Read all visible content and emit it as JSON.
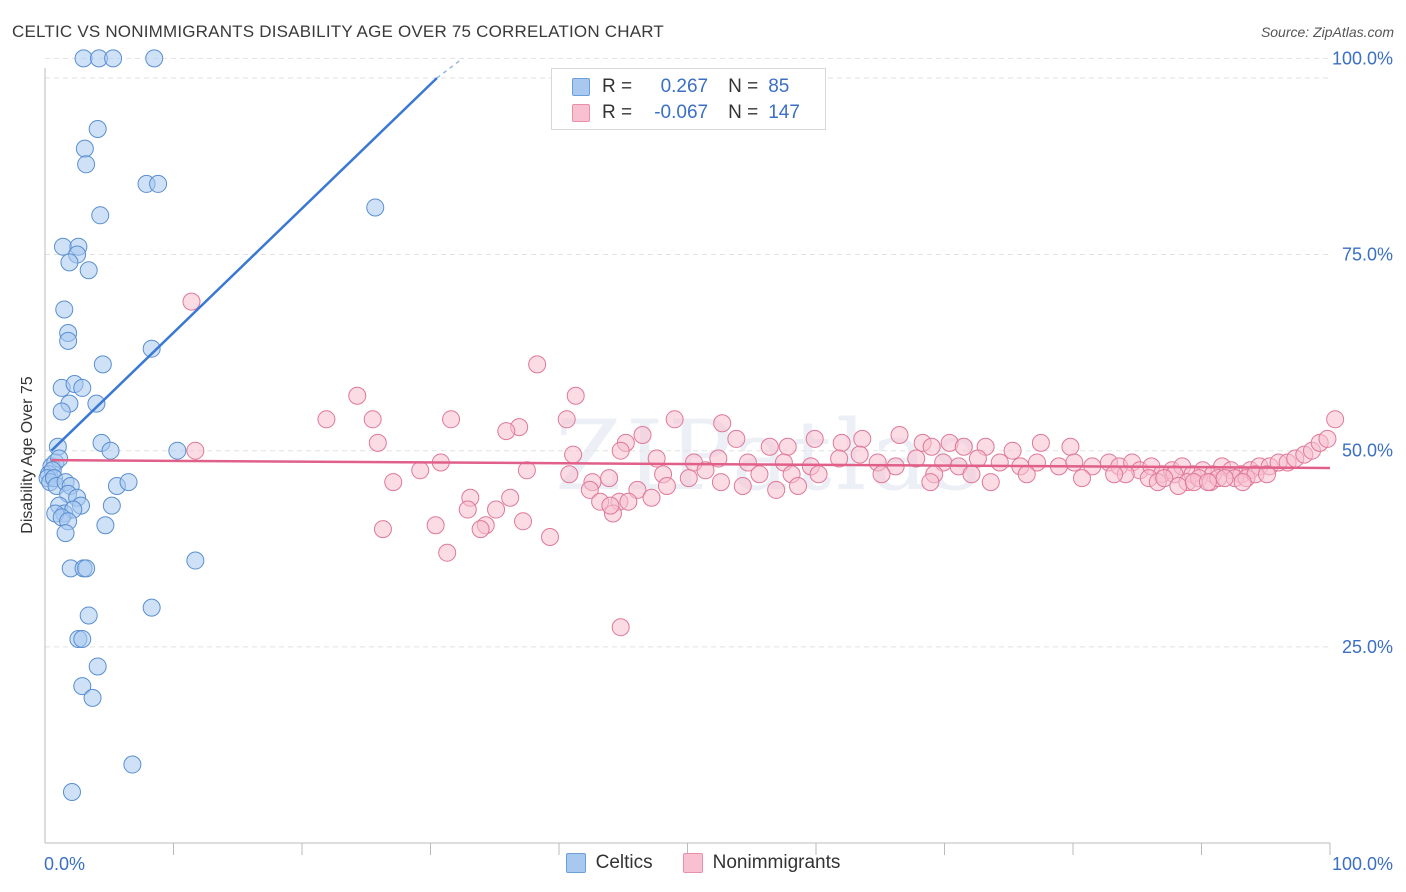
{
  "title": "CELTIC VS NONIMMIGRANTS DISABILITY AGE OVER 75 CORRELATION CHART",
  "source": "Source: ZipAtlas.com",
  "watermark": "ZIPatlas",
  "legend": {
    "r_label": "R =",
    "n_label": "N =",
    "rows": [
      {
        "name": "Celtics",
        "r": "0.267",
        "n": "85",
        "color": "#a8c8f0",
        "stroke": "#6a9fd8"
      },
      {
        "name": "Nonimmigrants",
        "r": "-0.067",
        "n": "147",
        "color": "#f8c0d0",
        "stroke": "#e890aa"
      }
    ]
  },
  "chart_data": {
    "type": "scatter",
    "title": "CELTIC VS NONIMMIGRANTS DISABILITY AGE OVER 75 CORRELATION CHART",
    "xlabel": "",
    "ylabel": "Disability Age Over 75",
    "xlim": [
      0,
      100
    ],
    "ylim": [
      0,
      100
    ],
    "x_tick_labels": [
      "0.0%",
      "100.0%"
    ],
    "y_tick_labels": [
      "25.0%",
      "50.0%",
      "75.0%",
      "100.0%"
    ],
    "y_ticks": [
      25,
      50,
      75,
      100
    ],
    "series": [
      {
        "name": "Celtics",
        "color": "#a8c8f0",
        "stroke": "#5a8fd0",
        "trend": {
          "x": [
            0.5,
            30.5
          ],
          "y": [
            50,
            97.5
          ],
          "color": "#3a78d4",
          "dash_to": [
            32.5,
            100
          ]
        },
        "points": [
          [
            3,
            100
          ],
          [
            4.2,
            100
          ],
          [
            5.3,
            100
          ],
          [
            8.5,
            100
          ],
          [
            4.1,
            91
          ],
          [
            3.1,
            88.5
          ],
          [
            3.2,
            86.5
          ],
          [
            7.9,
            84
          ],
          [
            8.8,
            84
          ],
          [
            4.3,
            80
          ],
          [
            25.7,
            81
          ],
          [
            1.4,
            76
          ],
          [
            2.6,
            76
          ],
          [
            2.5,
            75
          ],
          [
            1.9,
            74
          ],
          [
            3.4,
            73
          ],
          [
            1.5,
            68
          ],
          [
            1.8,
            65
          ],
          [
            1.8,
            64
          ],
          [
            8.3,
            63
          ],
          [
            4.5,
            61
          ],
          [
            1.3,
            58
          ],
          [
            2.3,
            58.5
          ],
          [
            2.9,
            58
          ],
          [
            1.9,
            56
          ],
          [
            4,
            56
          ],
          [
            1.3,
            55
          ],
          [
            1,
            50.5
          ],
          [
            4.4,
            51
          ],
          [
            5.1,
            50
          ],
          [
            10.3,
            50
          ],
          [
            0.5,
            48
          ],
          [
            0.8,
            48.5
          ],
          [
            1.1,
            49
          ],
          [
            0.3,
            47
          ],
          [
            0.6,
            47.5
          ],
          [
            0.2,
            46.5
          ],
          [
            0.4,
            46
          ],
          [
            0.7,
            46.5
          ],
          [
            0.9,
            45.5
          ],
          [
            1.6,
            46
          ],
          [
            2,
            45.5
          ],
          [
            1.8,
            44.5
          ],
          [
            2.5,
            44
          ],
          [
            5.6,
            45.5
          ],
          [
            6.5,
            46
          ],
          [
            1.1,
            43
          ],
          [
            2.8,
            43
          ],
          [
            5.2,
            43
          ],
          [
            1.5,
            42
          ],
          [
            2.2,
            42.5
          ],
          [
            0.8,
            42
          ],
          [
            1.3,
            41.5
          ],
          [
            1.8,
            41
          ],
          [
            4.7,
            40.5
          ],
          [
            1.6,
            39.5
          ],
          [
            11.7,
            36
          ],
          [
            2,
            35
          ],
          [
            3,
            35
          ],
          [
            3.2,
            35
          ],
          [
            3.4,
            29
          ],
          [
            8.3,
            30
          ],
          [
            2.6,
            26
          ],
          [
            2.9,
            26
          ],
          [
            4.1,
            22.5
          ],
          [
            2.9,
            20
          ],
          [
            3.7,
            18.5
          ],
          [
            6.8,
            10
          ],
          [
            2.1,
            6.5
          ]
        ]
      },
      {
        "name": "Nonimmigrants",
        "color": "#f8c0d0",
        "stroke": "#e07898",
        "trend": {
          "x": [
            0.5,
            100
          ],
          "y": [
            48.8,
            47.8
          ],
          "color": "#e0608a"
        },
        "points": [
          [
            11.4,
            69
          ],
          [
            38.3,
            61
          ],
          [
            24.3,
            57
          ],
          [
            41.3,
            57
          ],
          [
            21.9,
            54
          ],
          [
            25.5,
            54
          ],
          [
            31.6,
            54
          ],
          [
            36.9,
            53
          ],
          [
            40.6,
            54
          ],
          [
            49,
            54
          ],
          [
            52.7,
            53.5
          ],
          [
            35.9,
            52.5
          ],
          [
            25.9,
            51
          ],
          [
            30.8,
            48.5
          ],
          [
            45.2,
            51
          ],
          [
            46.5,
            52
          ],
          [
            53.8,
            51.5
          ],
          [
            56.4,
            50.5
          ],
          [
            57.8,
            50.5
          ],
          [
            59.9,
            51.5
          ],
          [
            62,
            51
          ],
          [
            63.6,
            51.5
          ],
          [
            66.5,
            52
          ],
          [
            68.3,
            51
          ],
          [
            70.4,
            51
          ],
          [
            71.5,
            50.5
          ],
          [
            73.2,
            50.5
          ],
          [
            75.3,
            50
          ],
          [
            77.5,
            51
          ],
          [
            79.8,
            50.5
          ],
          [
            11.7,
            50
          ],
          [
            41.1,
            49.5
          ],
          [
            44.8,
            50
          ],
          [
            47.6,
            49
          ],
          [
            50.5,
            48.5
          ],
          [
            52.4,
            49
          ],
          [
            54.7,
            48.5
          ],
          [
            57.5,
            48.5
          ],
          [
            59.6,
            48
          ],
          [
            61.8,
            49
          ],
          [
            63.4,
            49.5
          ],
          [
            64.8,
            48.5
          ],
          [
            66.2,
            48
          ],
          [
            67.8,
            49
          ],
          [
            69.9,
            48.5
          ],
          [
            71.1,
            48
          ],
          [
            72.6,
            49
          ],
          [
            74.3,
            48.5
          ],
          [
            75.9,
            48
          ],
          [
            77.2,
            48.5
          ],
          [
            78.9,
            48
          ],
          [
            80.1,
            48.5
          ],
          [
            81.5,
            48
          ],
          [
            82.8,
            48.5
          ],
          [
            83.6,
            48
          ],
          [
            84.6,
            48.5
          ],
          [
            85.2,
            47.5
          ],
          [
            86.1,
            48
          ],
          [
            86.9,
            47
          ],
          [
            87.7,
            47.5
          ],
          [
            88.5,
            48
          ],
          [
            89.3,
            47
          ],
          [
            90.1,
            47.5
          ],
          [
            90.9,
            47
          ],
          [
            91.6,
            48
          ],
          [
            92.3,
            47.5
          ],
          [
            93.1,
            47
          ],
          [
            93.8,
            47.5
          ],
          [
            94.5,
            48
          ],
          [
            95.3,
            48
          ],
          [
            96,
            48.5
          ],
          [
            96.7,
            48.5
          ],
          [
            97.3,
            49
          ],
          [
            98,
            49.5
          ],
          [
            98.6,
            50
          ],
          [
            99.2,
            51
          ],
          [
            99.8,
            51.5
          ],
          [
            100.4,
            54
          ],
          [
            27.1,
            46
          ],
          [
            29.2,
            47.5
          ],
          [
            37.5,
            47.5
          ],
          [
            40.8,
            47
          ],
          [
            42.6,
            46
          ],
          [
            43.9,
            46.5
          ],
          [
            48.1,
            47
          ],
          [
            50.1,
            46.5
          ],
          [
            51.4,
            47.5
          ],
          [
            55.6,
            47
          ],
          [
            58.1,
            47
          ],
          [
            60.2,
            47
          ],
          [
            65.1,
            47
          ],
          [
            69.2,
            47
          ],
          [
            72.1,
            47
          ],
          [
            76.4,
            47
          ],
          [
            84.1,
            47
          ],
          [
            85.9,
            46.5
          ],
          [
            86.6,
            46
          ],
          [
            87.9,
            47
          ],
          [
            88.9,
            46
          ],
          [
            89.8,
            46.5
          ],
          [
            90.7,
            46
          ],
          [
            91.3,
            46.5
          ],
          [
            92.6,
            46.5
          ],
          [
            93.5,
            46.5
          ],
          [
            94.2,
            47
          ],
          [
            95.1,
            47
          ],
          [
            42.4,
            45
          ],
          [
            46.1,
            45
          ],
          [
            48.4,
            45.5
          ],
          [
            52.6,
            46
          ],
          [
            54.3,
            45.5
          ],
          [
            56.9,
            45
          ],
          [
            58.6,
            45.5
          ],
          [
            68.9,
            46
          ],
          [
            73.6,
            46
          ],
          [
            80.7,
            46.5
          ],
          [
            83.2,
            47
          ],
          [
            87.1,
            46.5
          ],
          [
            88.2,
            45.5
          ],
          [
            89.4,
            46
          ],
          [
            90.5,
            46
          ],
          [
            91.8,
            46.5
          ],
          [
            93.2,
            46
          ],
          [
            33.1,
            44
          ],
          [
            36.2,
            44
          ],
          [
            44.7,
            43.5
          ],
          [
            47.2,
            44
          ],
          [
            32.9,
            42.5
          ],
          [
            35.1,
            42.5
          ],
          [
            34.3,
            40.5
          ],
          [
            37.2,
            41
          ],
          [
            26.3,
            40
          ],
          [
            30.4,
            40.5
          ],
          [
            39.3,
            39
          ],
          [
            33.9,
            40
          ],
          [
            43.2,
            43.5
          ],
          [
            31.3,
            37
          ],
          [
            44.2,
            42
          ],
          [
            44,
            43
          ],
          [
            45.4,
            43.5
          ],
          [
            44.8,
            27.5
          ],
          [
            69,
            50.5
          ]
        ]
      }
    ]
  }
}
